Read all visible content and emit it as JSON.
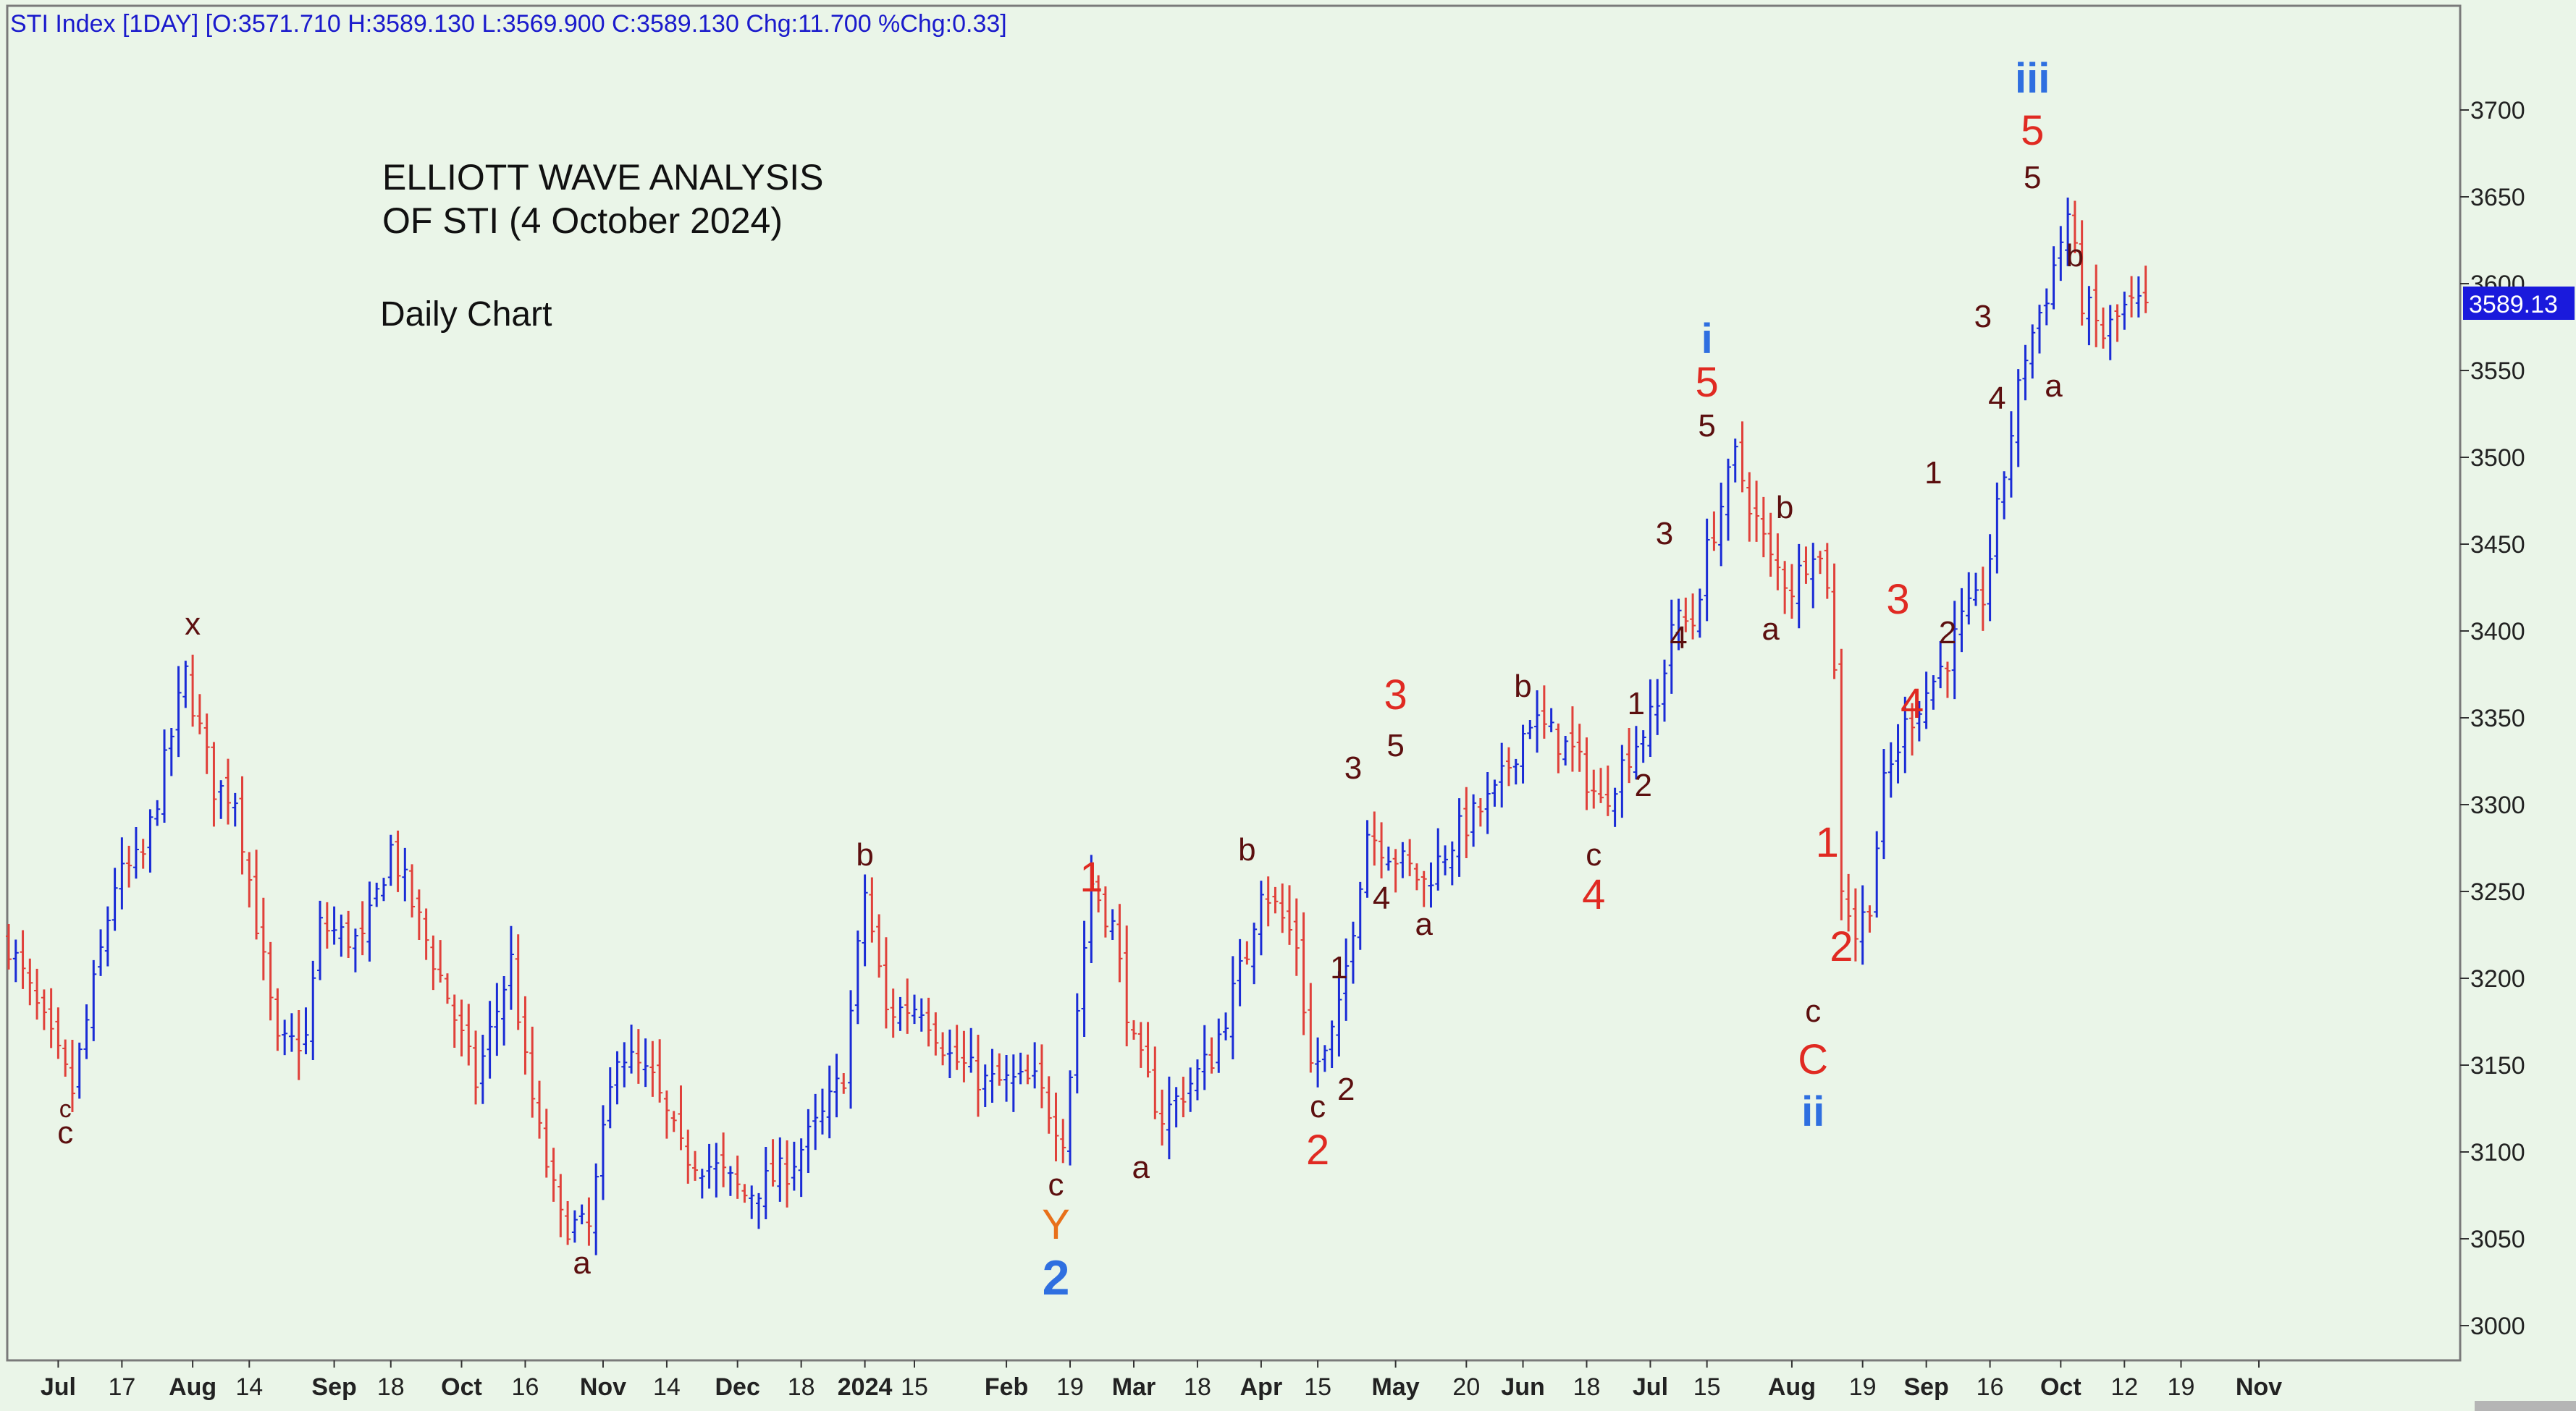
{
  "header": {
    "text": "STI Index [1DAY] [O:3571.710 H:3589.130 L:3569.900 C:3589.130 Chg:11.700 %Chg:0.33]"
  },
  "chart_data": {
    "type": "ohlc",
    "title": "ELLIOTT WAVE ANALYSIS",
    "title_line2": "OF STI (4 October 2024)",
    "subtitle": "Daily Chart",
    "ylim": [
      2980,
      3760
    ],
    "y_ticks": [
      3000,
      3050,
      3100,
      3150,
      3200,
      3250,
      3300,
      3350,
      3400,
      3450,
      3500,
      3550,
      3600,
      3650,
      3700
    ],
    "last_price_label": "3589.13",
    "last_price": 3589.13,
    "x_range_days": [
      0,
      340
    ],
    "x_ticks": [
      {
        "label": "Jul",
        "day": 7,
        "bold": true
      },
      {
        "label": "17",
        "day": 16
      },
      {
        "label": "Aug",
        "day": 26,
        "bold": true
      },
      {
        "label": "14",
        "day": 34
      },
      {
        "label": "Sep",
        "day": 46,
        "bold": true
      },
      {
        "label": "18",
        "day": 54
      },
      {
        "label": "Oct",
        "day": 64,
        "bold": true
      },
      {
        "label": "16",
        "day": 73
      },
      {
        "label": "Nov",
        "day": 84,
        "bold": true
      },
      {
        "label": "14",
        "day": 93
      },
      {
        "label": "Dec",
        "day": 103,
        "bold": true
      },
      {
        "label": "18",
        "day": 112
      },
      {
        "label": "2024",
        "day": 121,
        "bold": true
      },
      {
        "label": "15",
        "day": 128
      },
      {
        "label": "Feb",
        "day": 141,
        "bold": true
      },
      {
        "label": "19",
        "day": 150
      },
      {
        "label": "Mar",
        "day": 159,
        "bold": true
      },
      {
        "label": "18",
        "day": 168
      },
      {
        "label": "Apr",
        "day": 177,
        "bold": true
      },
      {
        "label": "15",
        "day": 185
      },
      {
        "label": "May",
        "day": 196,
        "bold": true
      },
      {
        "label": "20",
        "day": 206
      },
      {
        "label": "Jun",
        "day": 214,
        "bold": true
      },
      {
        "label": "18",
        "day": 223
      },
      {
        "label": "Jul",
        "day": 232,
        "bold": true
      },
      {
        "label": "15",
        "day": 240
      },
      {
        "label": "Aug",
        "day": 252,
        "bold": true
      },
      {
        "label": "19",
        "day": 262
      },
      {
        "label": "Sep",
        "day": 271,
        "bold": true
      },
      {
        "label": "16",
        "day": 280
      },
      {
        "label": "Oct",
        "day": 290,
        "bold": true
      },
      {
        "label": "12",
        "day": 299
      },
      {
        "label": "19",
        "day": 307
      },
      {
        "label": "Nov",
        "day": 318,
        "bold": true
      }
    ],
    "price_path": [
      [
        0,
        3220
      ],
      [
        9,
        3135
      ],
      [
        15,
        3255
      ],
      [
        19,
        3270
      ],
      [
        25,
        3375
      ],
      [
        29,
        3310
      ],
      [
        32,
        3305
      ],
      [
        38,
        3160
      ],
      [
        42,
        3165
      ],
      [
        44,
        3230
      ],
      [
        50,
        3220
      ],
      [
        54,
        3275
      ],
      [
        62,
        3190
      ],
      [
        66,
        3140
      ],
      [
        71,
        3210
      ],
      [
        73,
        3150
      ],
      [
        75,
        3110
      ],
      [
        78,
        3060
      ],
      [
        82,
        3055
      ],
      [
        86,
        3160
      ],
      [
        91,
        3140
      ],
      [
        95,
        3100
      ],
      [
        100,
        3090
      ],
      [
        104,
        3075
      ],
      [
        110,
        3090
      ],
      [
        115,
        3120
      ],
      [
        118,
        3145
      ],
      [
        121,
        3250
      ],
      [
        124,
        3180
      ],
      [
        129,
        3185
      ],
      [
        133,
        3155
      ],
      [
        138,
        3140
      ],
      [
        145,
        3140
      ],
      [
        149,
        3110
      ],
      [
        153,
        3255
      ],
      [
        156,
        3230
      ],
      [
        159,
        3160
      ],
      [
        163,
        3120
      ],
      [
        170,
        3155
      ],
      [
        175,
        3215
      ],
      [
        177,
        3255
      ],
      [
        182,
        3220
      ],
      [
        184,
        3150
      ],
      [
        186,
        3155
      ],
      [
        188,
        3180
      ],
      [
        192,
        3285
      ],
      [
        196,
        3270
      ],
      [
        200,
        3255
      ],
      [
        205,
        3285
      ],
      [
        210,
        3305
      ],
      [
        215,
        3350
      ],
      [
        221,
        3330
      ],
      [
        225,
        3300
      ],
      [
        229,
        3330
      ],
      [
        233,
        3355
      ],
      [
        235,
        3405
      ],
      [
        238,
        3405
      ],
      [
        240,
        3445
      ],
      [
        244,
        3500
      ],
      [
        246,
        3475
      ],
      [
        249,
        3440
      ],
      [
        252,
        3425
      ],
      [
        255,
        3450
      ],
      [
        257,
        3430
      ],
      [
        258,
        3375
      ],
      [
        259,
        3255
      ],
      [
        261,
        3225
      ],
      [
        263,
        3245
      ],
      [
        265,
        3310
      ],
      [
        268,
        3345
      ],
      [
        271,
        3365
      ],
      [
        274,
        3385
      ],
      [
        276,
        3405
      ],
      [
        279,
        3420
      ],
      [
        283,
        3515
      ],
      [
        285,
        3560
      ],
      [
        288,
        3595
      ],
      [
        291,
        3640
      ],
      [
        293,
        3590
      ],
      [
        296,
        3570
      ],
      [
        299,
        3585
      ],
      [
        302,
        3589
      ]
    ],
    "annotations": [
      {
        "text": "c",
        "day": 8,
        "price": 3120,
        "color": "#5c0f0f",
        "size": "small"
      },
      {
        "text": "c",
        "day": 8,
        "price": 3105,
        "color": "#5c0f0f",
        "size": "med"
      },
      {
        "text": "x",
        "day": 26,
        "price": 3398,
        "color": "#5c0f0f",
        "size": "med"
      },
      {
        "text": "a",
        "day": 81,
        "price": 3030,
        "color": "#5c0f0f",
        "size": "med"
      },
      {
        "text": "b",
        "day": 121,
        "price": 3265,
        "color": "#5c0f0f",
        "size": "med"
      },
      {
        "text": "c",
        "day": 148,
        "price": 3075,
        "color": "#5c0f0f",
        "size": "med"
      },
      {
        "text": "Y",
        "day": 148,
        "price": 3050,
        "color": "#e8701a",
        "size": "big"
      },
      {
        "text": "2",
        "day": 148,
        "price": 3018,
        "color": "#2f6fe0",
        "size": "huge"
      },
      {
        "text": "1",
        "day": 153,
        "price": 3250,
        "color": "#e02a22",
        "size": "big"
      },
      {
        "text": "a",
        "day": 160,
        "price": 3085,
        "color": "#5c0f0f",
        "size": "med"
      },
      {
        "text": "b",
        "day": 175,
        "price": 3268,
        "color": "#5c0f0f",
        "size": "med"
      },
      {
        "text": "1",
        "day": 188,
        "price": 3200,
        "color": "#5c0f0f",
        "size": "med"
      },
      {
        "text": "c",
        "day": 185,
        "price": 3120,
        "color": "#5c0f0f",
        "size": "med"
      },
      {
        "text": "2",
        "day": 189,
        "price": 3130,
        "color": "#5c0f0f",
        "size": "med"
      },
      {
        "text": "2",
        "day": 185,
        "price": 3093,
        "color": "#e02a22",
        "size": "big"
      },
      {
        "text": "3",
        "day": 190,
        "price": 3315,
        "color": "#5c0f0f",
        "size": "med"
      },
      {
        "text": "3",
        "day": 196,
        "price": 3355,
        "color": "#e02a22",
        "size": "big"
      },
      {
        "text": "5",
        "day": 196,
        "price": 3328,
        "color": "#5c0f0f",
        "size": "med"
      },
      {
        "text": "4",
        "day": 194,
        "price": 3240,
        "color": "#5c0f0f",
        "size": "med"
      },
      {
        "text": "a",
        "day": 200,
        "price": 3225,
        "color": "#5c0f0f",
        "size": "med"
      },
      {
        "text": "b",
        "day": 214,
        "price": 3362,
        "color": "#5c0f0f",
        "size": "med"
      },
      {
        "text": "c",
        "day": 224,
        "price": 3265,
        "color": "#5c0f0f",
        "size": "med"
      },
      {
        "text": "4",
        "day": 224,
        "price": 3240,
        "color": "#e02a22",
        "size": "big"
      },
      {
        "text": "1",
        "day": 230,
        "price": 3352,
        "color": "#5c0f0f",
        "size": "med"
      },
      {
        "text": "2",
        "day": 231,
        "price": 3305,
        "color": "#5c0f0f",
        "size": "med"
      },
      {
        "text": "3",
        "day": 234,
        "price": 3450,
        "color": "#5c0f0f",
        "size": "med"
      },
      {
        "text": "4",
        "day": 236,
        "price": 3390,
        "color": "#5c0f0f",
        "size": "med"
      },
      {
        "text": "i",
        "day": 240,
        "price": 3560,
        "color": "#2f6fe0",
        "size": "big"
      },
      {
        "text": "5",
        "day": 240,
        "price": 3535,
        "color": "#e02a22",
        "size": "big"
      },
      {
        "text": "5",
        "day": 240,
        "price": 3512,
        "color": "#5c0f0f",
        "size": "med"
      },
      {
        "text": "b",
        "day": 251,
        "price": 3465,
        "color": "#5c0f0f",
        "size": "med"
      },
      {
        "text": "a",
        "day": 249,
        "price": 3395,
        "color": "#5c0f0f",
        "size": "med"
      },
      {
        "text": "c",
        "day": 255,
        "price": 3175,
        "color": "#5c0f0f",
        "size": "med"
      },
      {
        "text": "C",
        "day": 255,
        "price": 3145,
        "color": "#e02a22",
        "size": "big"
      },
      {
        "text": "ii",
        "day": 255,
        "price": 3115,
        "color": "#2f6fe0",
        "size": "big"
      },
      {
        "text": "1",
        "day": 257,
        "price": 3270,
        "color": "#e02a22",
        "size": "big"
      },
      {
        "text": "2",
        "day": 259,
        "price": 3210,
        "color": "#e02a22",
        "size": "big"
      },
      {
        "text": "3",
        "day": 267,
        "price": 3410,
        "color": "#e02a22",
        "size": "big"
      },
      {
        "text": "4",
        "day": 269,
        "price": 3350,
        "color": "#e02a22",
        "size": "big"
      },
      {
        "text": "1",
        "day": 272,
        "price": 3485,
        "color": "#5c0f0f",
        "size": "med"
      },
      {
        "text": "2",
        "day": 274,
        "price": 3393,
        "color": "#5c0f0f",
        "size": "med"
      },
      {
        "text": "3",
        "day": 279,
        "price": 3575,
        "color": "#5c0f0f",
        "size": "med"
      },
      {
        "text": "4",
        "day": 281,
        "price": 3528,
        "color": "#5c0f0f",
        "size": "med"
      },
      {
        "text": "iii",
        "day": 286,
        "price": 3710,
        "color": "#2f6fe0",
        "size": "big"
      },
      {
        "text": "5",
        "day": 286,
        "price": 3680,
        "color": "#e02a22",
        "size": "big"
      },
      {
        "text": "5",
        "day": 286,
        "price": 3655,
        "color": "#5c0f0f",
        "size": "med"
      },
      {
        "text": "b",
        "day": 292,
        "price": 3610,
        "color": "#5c0f0f",
        "size": "med"
      },
      {
        "text": "a",
        "day": 289,
        "price": 3535,
        "color": "#5c0f0f",
        "size": "med"
      }
    ]
  },
  "colors": {
    "chart_bg": "#eaf5e8",
    "up_bar": "#1a2bd6",
    "down_bar": "#e0403a",
    "price_tag_bg": "#1a1adc",
    "header_text": "#1a1acc"
  }
}
